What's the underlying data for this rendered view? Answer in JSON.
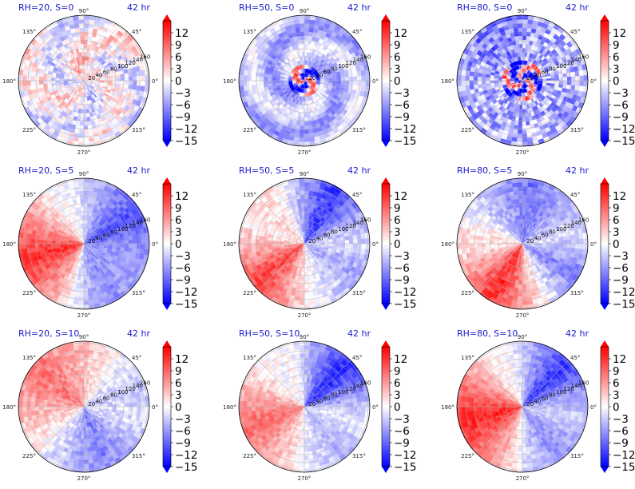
{
  "figure": {
    "time_label": "42 hr",
    "angle_labels": [
      "0°",
      "45°",
      "90°",
      "135°",
      "180°",
      "225°",
      "270°",
      "315°"
    ],
    "radial_labels": [
      "20",
      "40",
      "60",
      "80",
      "100",
      "120",
      "140",
      "160"
    ],
    "colorbar_ticks": [
      "12",
      "9",
      "6",
      "3",
      "0",
      "−3",
      "−6",
      "−9",
      "−12",
      "−15"
    ]
  },
  "chart_data": [
    {
      "type": "heatmap",
      "projection": "polar",
      "title": "RH=20, S=0",
      "time": "42 hr",
      "rlim": [
        0,
        160
      ],
      "clim": [
        -15,
        12
      ],
      "colormap": "bwr",
      "pattern": "weak-noise",
      "row": 0,
      "col": 0
    },
    {
      "type": "heatmap",
      "projection": "polar",
      "title": "RH=50, S=0",
      "time": "42 hr",
      "rlim": [
        0,
        160
      ],
      "clim": [
        -15,
        12
      ],
      "colormap": "bwr",
      "pattern": "spiral-core",
      "row": 0,
      "col": 1
    },
    {
      "type": "heatmap",
      "projection": "polar",
      "title": "RH=80, S=0",
      "time": "42 hr",
      "rlim": [
        0,
        160
      ],
      "clim": [
        -15,
        12
      ],
      "colormap": "bwr",
      "pattern": "strong-core",
      "row": 0,
      "col": 2
    },
    {
      "type": "heatmap",
      "projection": "polar",
      "title": "RH=20, S=5",
      "time": "42 hr",
      "rlim": [
        0,
        160
      ],
      "clim": [
        -15,
        12
      ],
      "colormap": "bwr",
      "pattern": "dipole-left",
      "row": 1,
      "col": 0
    },
    {
      "type": "heatmap",
      "projection": "polar",
      "title": "RH=50, S=5",
      "time": "42 hr",
      "rlim": [
        0,
        160
      ],
      "clim": [
        -15,
        12
      ],
      "colormap": "bwr",
      "pattern": "dipole-lowerleft",
      "row": 1,
      "col": 1
    },
    {
      "type": "heatmap",
      "projection": "polar",
      "title": "RH=80, S=5",
      "time": "42 hr",
      "rlim": [
        0,
        160
      ],
      "clim": [
        -15,
        12
      ],
      "colormap": "bwr",
      "pattern": "dipole-lowerleft-strong",
      "row": 1,
      "col": 2
    },
    {
      "type": "heatmap",
      "projection": "polar",
      "title": "RH=20, S=10",
      "time": "42 hr",
      "rlim": [
        0,
        160
      ],
      "clim": [
        -15,
        12
      ],
      "colormap": "bwr",
      "pattern": "dipole-upperleft",
      "row": 2,
      "col": 0
    },
    {
      "type": "heatmap",
      "projection": "polar",
      "title": "RH=50, S=10",
      "time": "42 hr",
      "rlim": [
        0,
        160
      ],
      "clim": [
        -15,
        12
      ],
      "colormap": "bwr",
      "pattern": "dipole-left-blue-right",
      "row": 2,
      "col": 1
    },
    {
      "type": "heatmap",
      "projection": "polar",
      "title": "RH=80, S=10",
      "time": "42 hr",
      "rlim": [
        0,
        160
      ],
      "clim": [
        -15,
        12
      ],
      "colormap": "bwr",
      "pattern": "dipole-left-strong",
      "row": 2,
      "col": 2
    }
  ]
}
